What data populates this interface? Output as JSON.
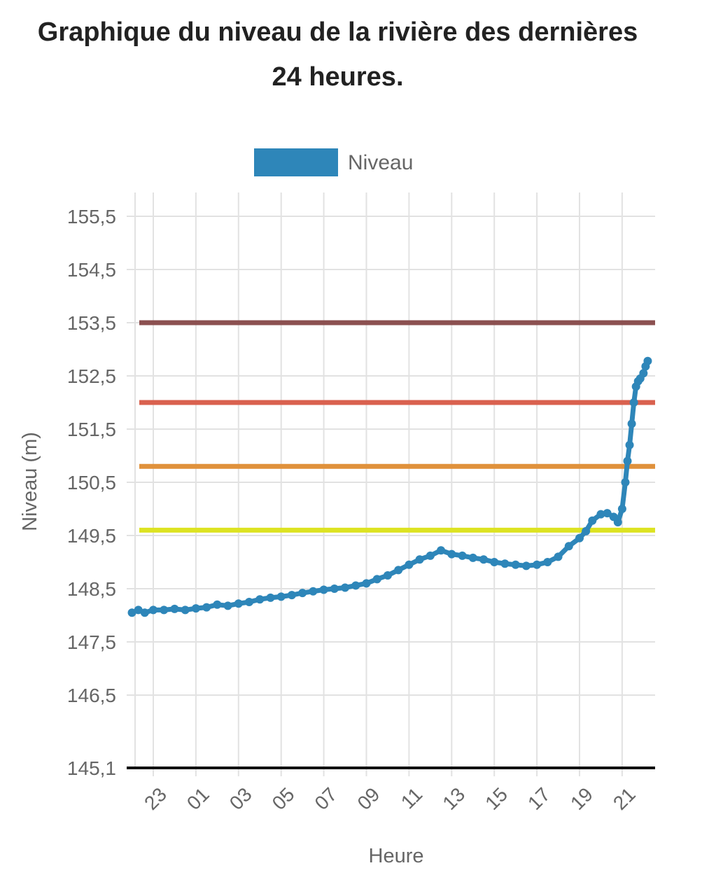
{
  "title": "Graphique du niveau de la rivière des dernières 24 heures.",
  "chart_data": {
    "type": "line",
    "title": "Graphique du niveau de la rivière des dernières 24 heures.",
    "xlabel": "Heure",
    "ylabel": "Niveau (m)",
    "legend": {
      "label": "Niveau",
      "color": "#2e86b9",
      "placement": "top"
    },
    "grid": true,
    "x_domain_hours": [
      22.0,
      46.2
    ],
    "y_domain": [
      145.1,
      156.0
    ],
    "y_ticks": [
      {
        "value": 145.1,
        "label": "145,1"
      },
      {
        "value": 146.5,
        "label": "146,5"
      },
      {
        "value": 147.5,
        "label": "147,5"
      },
      {
        "value": 148.5,
        "label": "148,5"
      },
      {
        "value": 149.5,
        "label": "149,5"
      },
      {
        "value": 150.5,
        "label": "150,5"
      },
      {
        "value": 151.5,
        "label": "151,5"
      },
      {
        "value": 152.5,
        "label": "152,5"
      },
      {
        "value": 153.5,
        "label": "153,5"
      },
      {
        "value": 154.5,
        "label": "154,5"
      },
      {
        "value": 155.5,
        "label": "155,5"
      }
    ],
    "x_ticks": [
      {
        "value": 23,
        "label": "23"
      },
      {
        "value": 25,
        "label": "01"
      },
      {
        "value": 27,
        "label": "03"
      },
      {
        "value": 29,
        "label": "05"
      },
      {
        "value": 31,
        "label": "07"
      },
      {
        "value": 33,
        "label": "09"
      },
      {
        "value": 35,
        "label": "11"
      },
      {
        "value": 37,
        "label": "13"
      },
      {
        "value": 39,
        "label": "15"
      },
      {
        "value": 41,
        "label": "17"
      },
      {
        "value": 43,
        "label": "19"
      },
      {
        "value": 45,
        "label": "21"
      }
    ],
    "thresholds": [
      {
        "value": 153.5,
        "color": "#8b5050"
      },
      {
        "value": 152.0,
        "color": "#d9614f"
      },
      {
        "value": 150.8,
        "color": "#e0913b"
      },
      {
        "value": 149.6,
        "color": "#dde322"
      },
      {
        "value": 145.1,
        "color": "#111111"
      }
    ],
    "series": [
      {
        "name": "Niveau",
        "color": "#2e86b9",
        "x": [
          22.0,
          22.3,
          22.6,
          23.0,
          23.5,
          24.0,
          24.5,
          25.0,
          25.5,
          26.0,
          26.5,
          27.0,
          27.5,
          28.0,
          28.5,
          29.0,
          29.5,
          30.0,
          30.5,
          31.0,
          31.5,
          32.0,
          32.5,
          33.0,
          33.5,
          34.0,
          34.5,
          35.0,
          35.5,
          36.0,
          36.5,
          37.0,
          37.5,
          38.0,
          38.5,
          39.0,
          39.5,
          40.0,
          40.5,
          41.0,
          41.5,
          42.0,
          42.5,
          43.0,
          43.3,
          43.6,
          44.0,
          44.3,
          44.6,
          44.8,
          45.0,
          45.15,
          45.25,
          45.35,
          45.45,
          45.55,
          45.65,
          45.75,
          45.85,
          46.0,
          46.1,
          46.2
        ],
        "y": [
          148.05,
          148.1,
          148.05,
          148.1,
          148.1,
          148.12,
          148.1,
          148.13,
          148.15,
          148.2,
          148.18,
          148.22,
          148.25,
          148.3,
          148.33,
          148.35,
          148.38,
          148.42,
          148.45,
          148.48,
          148.5,
          148.52,
          148.56,
          148.6,
          148.68,
          148.75,
          148.85,
          148.95,
          149.05,
          149.12,
          149.22,
          149.15,
          149.12,
          149.08,
          149.05,
          149.0,
          148.97,
          148.95,
          148.93,
          148.95,
          149.0,
          149.1,
          149.3,
          149.45,
          149.58,
          149.78,
          149.9,
          149.92,
          149.85,
          149.75,
          150.0,
          150.5,
          150.9,
          151.2,
          151.6,
          152.0,
          152.3,
          152.4,
          152.45,
          152.55,
          152.68,
          152.78
        ]
      }
    ]
  }
}
